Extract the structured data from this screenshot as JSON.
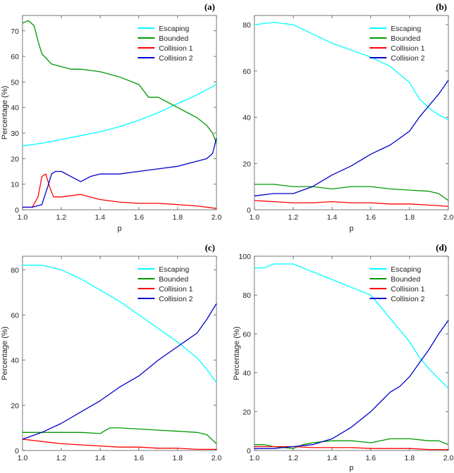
{
  "chart_data": [
    {
      "type": "line",
      "panel_label": "(a)",
      "xlabel": "p",
      "ylabel": "Percentage (%)",
      "xlim": [
        1.0,
        2.0
      ],
      "ylim": [
        0,
        76
      ],
      "xticks": [
        1.0,
        1.2,
        1.4,
        1.6,
        1.8,
        2.0
      ],
      "yticks": [
        0,
        10,
        20,
        30,
        40,
        50,
        60,
        70
      ],
      "legend_position": "top-right",
      "grid": false,
      "series": [
        {
          "name": "Escaping",
          "color": "#00ffff",
          "x": [
            1.0,
            1.1,
            1.2,
            1.3,
            1.4,
            1.5,
            1.6,
            1.7,
            1.8,
            1.9,
            2.0
          ],
          "y": [
            25,
            26,
            27.5,
            29,
            30.5,
            32.5,
            35,
            38,
            41.5,
            45,
            49
          ]
        },
        {
          "name": "Bounded",
          "color": "#009900",
          "x": [
            1.0,
            1.03,
            1.06,
            1.08,
            1.1,
            1.15,
            1.2,
            1.25,
            1.3,
            1.4,
            1.5,
            1.6,
            1.65,
            1.7,
            1.75,
            1.8,
            1.85,
            1.9,
            1.95,
            1.98,
            2.0
          ],
          "y": [
            73,
            74,
            72,
            66,
            61,
            57,
            56,
            55,
            55,
            54,
            52,
            49,
            44,
            44,
            42,
            40,
            38,
            36,
            33,
            30,
            26
          ]
        },
        {
          "name": "Collision 1",
          "color": "#ff0000",
          "x": [
            1.0,
            1.05,
            1.08,
            1.1,
            1.12,
            1.14,
            1.16,
            1.2,
            1.3,
            1.4,
            1.5,
            1.6,
            1.7,
            1.8,
            1.9,
            2.0
          ],
          "y": [
            1,
            1,
            5,
            13,
            14,
            9,
            5,
            5,
            6,
            4,
            3,
            2.5,
            2.5,
            2,
            1.5,
            0.5
          ]
        },
        {
          "name": "Collision 2",
          "color": "#0000cc",
          "x": [
            1.0,
            1.05,
            1.1,
            1.13,
            1.15,
            1.17,
            1.2,
            1.25,
            1.3,
            1.35,
            1.4,
            1.5,
            1.6,
            1.7,
            1.8,
            1.9,
            1.95,
            1.98,
            2.0
          ],
          "y": [
            1,
            1,
            2,
            9,
            14,
            15,
            15,
            13,
            11,
            13,
            14,
            14,
            15,
            16,
            17,
            19,
            20,
            22,
            28
          ]
        }
      ]
    },
    {
      "type": "line",
      "panel_label": "(b)",
      "xlabel": "p",
      "ylabel": "",
      "xlim": [
        1.0,
        2.0
      ],
      "ylim": [
        0,
        84
      ],
      "xticks": [
        1.0,
        1.2,
        1.4,
        1.6,
        1.8,
        2.0
      ],
      "yticks": [
        0,
        20,
        40,
        60,
        80
      ],
      "legend_position": "top-right",
      "grid": false,
      "series": [
        {
          "name": "Escaping",
          "color": "#00ffff",
          "x": [
            1.0,
            1.1,
            1.2,
            1.3,
            1.4,
            1.5,
            1.6,
            1.7,
            1.8,
            1.85,
            1.9,
            1.95,
            2.0
          ],
          "y": [
            80,
            81,
            80,
            76,
            72,
            69,
            66,
            62,
            55,
            48,
            44,
            41,
            39
          ]
        },
        {
          "name": "Bounded",
          "color": "#009900",
          "x": [
            1.0,
            1.1,
            1.2,
            1.3,
            1.4,
            1.5,
            1.6,
            1.7,
            1.8,
            1.9,
            1.95,
            2.0
          ],
          "y": [
            11,
            11,
            10,
            10,
            9,
            10,
            10,
            9,
            8.5,
            8,
            7,
            4
          ]
        },
        {
          "name": "Collision 1",
          "color": "#ff0000",
          "x": [
            1.0,
            1.1,
            1.2,
            1.3,
            1.4,
            1.5,
            1.6,
            1.7,
            1.8,
            1.9,
            2.0
          ],
          "y": [
            4,
            3.5,
            3,
            3,
            3.5,
            3,
            3,
            2.5,
            2.5,
            2,
            1.5
          ]
        },
        {
          "name": "Collision 2",
          "color": "#0000cc",
          "x": [
            1.0,
            1.1,
            1.2,
            1.3,
            1.4,
            1.5,
            1.6,
            1.7,
            1.8,
            1.85,
            1.9,
            1.95,
            2.0
          ],
          "y": [
            6,
            7,
            7,
            10,
            15,
            19,
            24,
            28,
            34,
            40,
            45,
            50,
            56
          ]
        }
      ]
    },
    {
      "type": "line",
      "panel_label": "(c)",
      "xlabel": "",
      "ylabel": "Percentage (%)",
      "xlim": [
        1.0,
        2.0
      ],
      "ylim": [
        0,
        86
      ],
      "xticks": [
        1.0,
        1.2,
        1.4,
        1.6,
        1.8,
        2.0
      ],
      "yticks": [
        0,
        20,
        40,
        60,
        80
      ],
      "legend_position": "top-right",
      "grid": false,
      "series": [
        {
          "name": "Escaping",
          "color": "#00ffff",
          "x": [
            1.0,
            1.1,
            1.2,
            1.3,
            1.4,
            1.5,
            1.6,
            1.7,
            1.8,
            1.9,
            1.95,
            2.0
          ],
          "y": [
            82,
            82,
            80,
            76,
            71,
            66,
            60,
            54,
            48,
            41,
            36,
            30
          ]
        },
        {
          "name": "Bounded",
          "color": "#009900",
          "x": [
            1.0,
            1.1,
            1.2,
            1.3,
            1.4,
            1.45,
            1.5,
            1.6,
            1.7,
            1.8,
            1.9,
            1.95,
            2.0
          ],
          "y": [
            8,
            8,
            8,
            8,
            7.5,
            10,
            10,
            9.5,
            9,
            8.5,
            8,
            7,
            3
          ]
        },
        {
          "name": "Collision 1",
          "color": "#ff0000",
          "x": [
            1.0,
            1.1,
            1.2,
            1.3,
            1.4,
            1.5,
            1.6,
            1.7,
            1.8,
            1.9,
            2.0
          ],
          "y": [
            5,
            4,
            3,
            2.5,
            2,
            1.5,
            1.5,
            1,
            1,
            0.5,
            0.5
          ]
        },
        {
          "name": "Collision 2",
          "color": "#0000cc",
          "x": [
            1.0,
            1.1,
            1.2,
            1.3,
            1.4,
            1.5,
            1.6,
            1.7,
            1.8,
            1.9,
            1.95,
            2.0
          ],
          "y": [
            5,
            8,
            12,
            17,
            22,
            28,
            33,
            40,
            46,
            52,
            58,
            65
          ]
        }
      ]
    },
    {
      "type": "line",
      "panel_label": "(d)",
      "xlabel": "p",
      "ylabel": "Percentage (%)",
      "xlim": [
        1.0,
        2.0
      ],
      "ylim": [
        0,
        100
      ],
      "xticks": [
        1.0,
        1.2,
        1.4,
        1.6,
        1.8,
        2.0
      ],
      "yticks": [
        0,
        20,
        40,
        60,
        80,
        100
      ],
      "legend_position": "top-right",
      "grid": false,
      "series": [
        {
          "name": "Escaping",
          "color": "#00ffff",
          "x": [
            1.0,
            1.05,
            1.1,
            1.2,
            1.3,
            1.4,
            1.5,
            1.6,
            1.7,
            1.75,
            1.8,
            1.85,
            1.9,
            1.95,
            2.0
          ],
          "y": [
            94,
            94,
            96,
            96,
            92,
            88,
            84,
            80,
            68,
            62,
            56,
            48,
            42,
            37,
            32
          ]
        },
        {
          "name": "Bounded",
          "color": "#009900",
          "x": [
            1.0,
            1.05,
            1.1,
            1.2,
            1.25,
            1.3,
            1.4,
            1.5,
            1.6,
            1.7,
            1.8,
            1.9,
            1.95,
            2.0
          ],
          "y": [
            3,
            3,
            2,
            1,
            3,
            4,
            5,
            5,
            4,
            6,
            6,
            5,
            5,
            3
          ]
        },
        {
          "name": "Collision 1",
          "color": "#ff0000",
          "x": [
            1.0,
            1.1,
            1.2,
            1.3,
            1.4,
            1.5,
            1.6,
            1.7,
            1.8,
            1.9,
            2.0
          ],
          "y": [
            2,
            2,
            2,
            1.5,
            1.5,
            1.5,
            1,
            1,
            1,
            0.5,
            0.5
          ]
        },
        {
          "name": "Collision 2",
          "color": "#0000cc",
          "x": [
            1.0,
            1.1,
            1.2,
            1.3,
            1.4,
            1.5,
            1.6,
            1.65,
            1.7,
            1.75,
            1.8,
            1.85,
            1.9,
            1.95,
            2.0
          ],
          "y": [
            1,
            1,
            2,
            3,
            6,
            12,
            20,
            25,
            30,
            33,
            38,
            45,
            52,
            60,
            67
          ]
        }
      ]
    }
  ]
}
